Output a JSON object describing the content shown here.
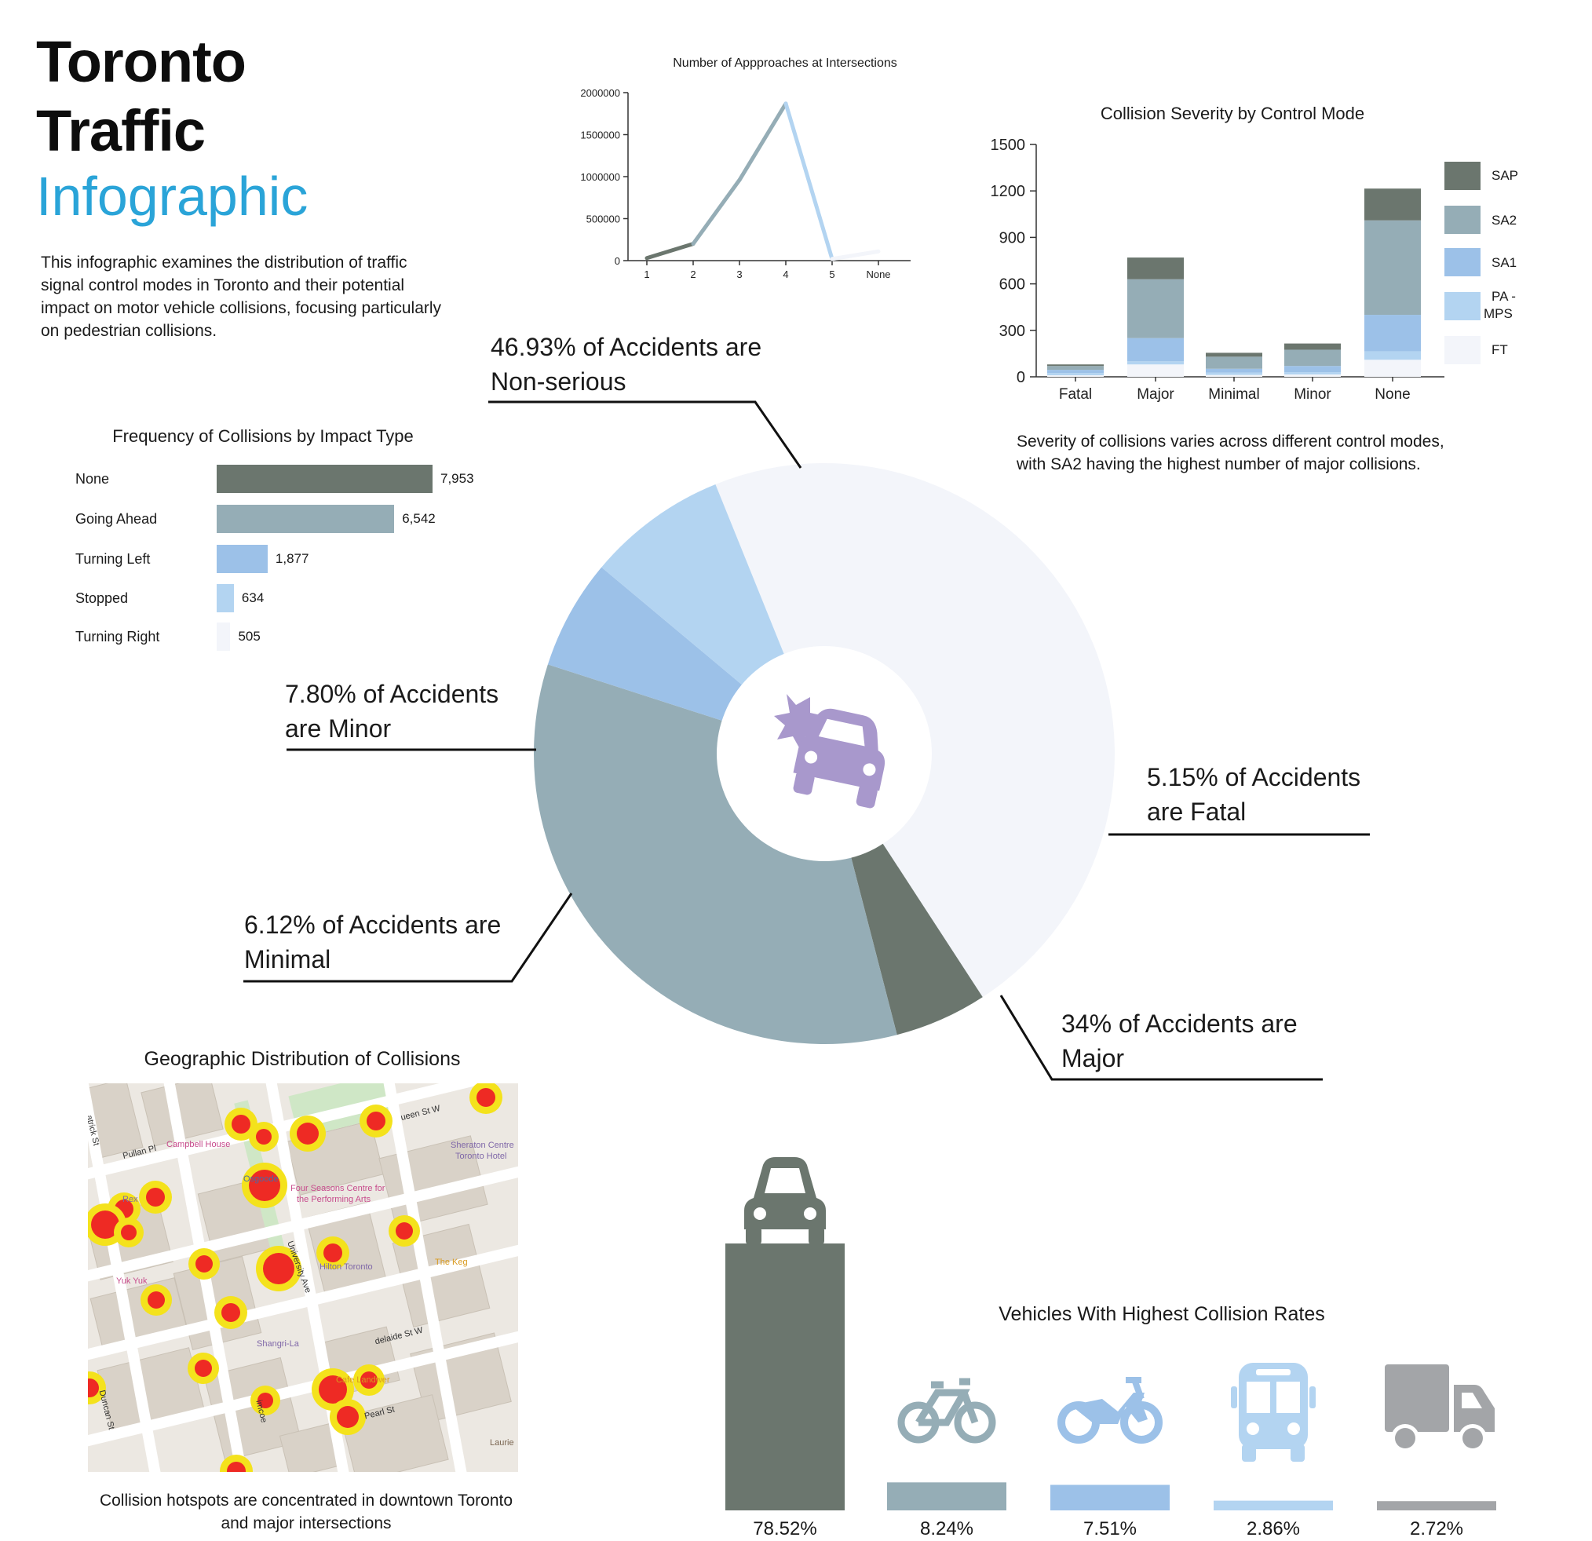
{
  "title": {
    "line1": "Toronto",
    "line2": "Traffic",
    "line3": "Infographic"
  },
  "intro": "This infographic examines the distribution of traffic signal control modes in Toronto and their potential impact on motor vehicle collisions, focusing particularly on pedestrian collisions.",
  "colors": {
    "dark": "#6b766e",
    "steel": "#95adb6",
    "blue": "#9cc1e8",
    "lightblue": "#b3d4f1",
    "pale": "#f3f5fa",
    "title_blue": "#2aa4d8",
    "icon_purple": "#a898cc"
  },
  "chart_data": [
    {
      "type": "line",
      "title": "Number of Appproaches at Intersections",
      "categories": [
        "1",
        "2",
        "3",
        "4",
        "5",
        "None"
      ],
      "values": [
        30000,
        200000,
        960000,
        1870000,
        20000,
        110000
      ],
      "ylim": [
        0,
        2000000
      ],
      "yticks": [
        "0",
        "500000",
        "1000000",
        "1500000",
        "2000000"
      ]
    },
    {
      "type": "bar",
      "stacked": true,
      "title": "Collision Severity by Control Mode",
      "categories": [
        "Fatal",
        "Major",
        "Minimal",
        "Minor",
        "None"
      ],
      "series": [
        {
          "name": "FT",
          "values": [
            10,
            80,
            12,
            15,
            110
          ]
        },
        {
          "name": "PA - MPS",
          "values": [
            15,
            20,
            15,
            15,
            55
          ]
        },
        {
          "name": "SA1",
          "values": [
            20,
            150,
            25,
            40,
            235
          ]
        },
        {
          "name": "SA2",
          "values": [
            25,
            380,
            78,
            105,
            610
          ]
        },
        {
          "name": "SAP",
          "values": [
            10,
            140,
            25,
            40,
            205
          ]
        }
      ],
      "legend_order": [
        "SAP",
        "SA2",
        "SA1",
        "PA - MPS",
        "FT"
      ],
      "ylim": [
        0,
        1500
      ],
      "yticks": [
        "0",
        "300",
        "600",
        "900",
        "1200",
        "1500"
      ]
    },
    {
      "type": "bar",
      "orientation": "horizontal",
      "title": "Frequency of Collisions by Impact Type",
      "categories": [
        "None",
        "Going Ahead",
        "Turning Left",
        "Stopped",
        "Turning Right"
      ],
      "values": [
        7953,
        6542,
        1877,
        634,
        505
      ],
      "value_labels": [
        "7,953",
        "6,542",
        "1,877",
        "634",
        "505"
      ]
    },
    {
      "type": "pie",
      "donut": true,
      "slices": [
        {
          "name": "Non-serious",
          "value": 46.93,
          "label": "46.93% of Accidents are Non-serious"
        },
        {
          "name": "Fatal",
          "value": 5.15,
          "label": "5.15% of Accidents are Fatal"
        },
        {
          "name": "Major",
          "value": 34,
          "label": "34% of Accidents are Major"
        },
        {
          "name": "Minimal",
          "value": 6.12,
          "label": "6.12% of Accidents are Minimal"
        },
        {
          "name": "Minor",
          "value": 7.8,
          "label": "7.80% of Accidents are Minor"
        }
      ]
    },
    {
      "type": "bar",
      "title": "Vehicles With Highest Collision Rates",
      "categories": [
        "car",
        "bicycle",
        "motorcycle",
        "bus",
        "truck"
      ],
      "values": [
        78.52,
        8.24,
        7.51,
        2.86,
        2.72
      ],
      "value_labels": [
        "78.52%",
        "8.24%",
        "7.51%",
        "2.86%",
        "2.72%"
      ]
    }
  ],
  "line_chart": {
    "title": "Number of Appproaches at Intersections",
    "x_ticks": [
      "1",
      "2",
      "3",
      "4",
      "5",
      "None"
    ],
    "y_ticks": [
      "0",
      "500000",
      "1000000",
      "1500000",
      "2000000"
    ]
  },
  "stacked_chart": {
    "title": "Collision Severity by Control Mode",
    "x_ticks": [
      "Fatal",
      "Major",
      "Minimal",
      "Minor",
      "None"
    ],
    "y_ticks": [
      "0",
      "300",
      "600",
      "900",
      "1200",
      "1500"
    ],
    "legend": [
      "SAP",
      "SA2",
      "SA1",
      "PA -",
      "MPS",
      "FT"
    ],
    "note_line1": "Severity of collisions varies across different control modes,",
    "note_line2": "with SA2 having the highest number of major collisions."
  },
  "impact_chart": {
    "title": "Frequency of Collisions by Impact Type",
    "labels": [
      "None",
      "Going Ahead",
      "Turning Left",
      "Stopped",
      "Turning Right"
    ],
    "values": [
      "7,953",
      "6,542",
      "1,877",
      "634",
      "505"
    ]
  },
  "donut": {
    "callouts": {
      "nonserious_1": "46.93% of Accidents are",
      "nonserious_2": "Non-serious",
      "fatal_1": "5.15% of Accidents",
      "fatal_2": "are Fatal",
      "major_1": "34% of Accidents are",
      "major_2": "Major",
      "minimal_1": "6.12% of Accidents are",
      "minimal_2": "Minimal",
      "minor_1": "7.80% of Accidents",
      "minor_2": "are Minor"
    },
    "center_icon": "car-crash-icon"
  },
  "map": {
    "title": "Geographic Distribution of Collisions",
    "caption_line1": "Collision hotspots are concentrated in downtown Toronto",
    "caption_line2": "and major intersections",
    "places": {
      "campbell": "Campbell House",
      "four_seasons_1": "Four Seasons Centre for",
      "four_seasons_2": "the Performing Arts",
      "sheraton_1": "Sheraton Centre",
      "sheraton_2": "Toronto Hotel",
      "rex": "Rex",
      "yukyuk": "Yuk Yuk",
      "hilton": "Hilton Toronto",
      "thekeg": "The Keg",
      "shangri": "Shangri-La",
      "cafe": "Cafe Landwer",
      "laurie": "Laurie"
    },
    "streets": {
      "pullan": "Pullan Pl",
      "queen": "ueen St W",
      "university": "University Ave",
      "adelaide": "delaide St W",
      "pearl": "Pearl St",
      "simcoe": "imcoe",
      "duncan": "Duncan St",
      "patrick": "atrick St",
      "osgoode": "Osgoode"
    }
  },
  "vehicles": {
    "title": "Vehicles With Highest Collision Rates",
    "icons": [
      "car-icon",
      "bicycle-icon",
      "motorcycle-icon",
      "bus-icon",
      "truck-icon"
    ],
    "pct": [
      "78.52%",
      "8.24%",
      "7.51%",
      "2.86%",
      "2.72%"
    ]
  }
}
